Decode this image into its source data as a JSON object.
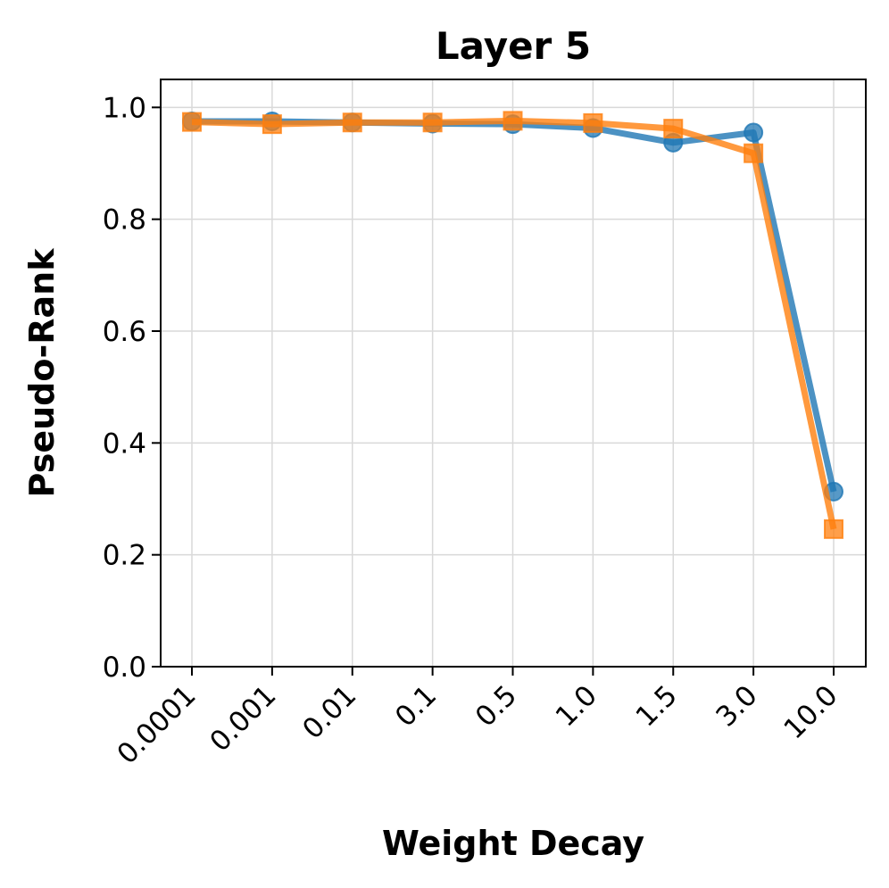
{
  "chart_data": {
    "type": "line",
    "title": "Layer 5",
    "xlabel": "Weight Decay",
    "ylabel": "Pseudo-Rank",
    "categories": [
      "0.0001",
      "0.001",
      "0.01",
      "0.1",
      "0.5",
      "1.0",
      "1.5",
      "3.0",
      "10.0"
    ],
    "ylim": [
      0.0,
      1.05
    ],
    "yticks": [
      "0.0",
      "0.2",
      "0.4",
      "0.6",
      "0.8",
      "1.0"
    ],
    "ytick_values": [
      0.0,
      0.2,
      0.4,
      0.6,
      0.8,
      1.0
    ],
    "grid": true,
    "series": [
      {
        "marker": "circle",
        "color": "#1f77b4",
        "values": [
          0.975,
          0.975,
          0.973,
          0.971,
          0.97,
          0.963,
          0.937,
          0.955,
          0.313
        ]
      },
      {
        "marker": "square",
        "color": "#ff7f0e",
        "values": [
          0.974,
          0.97,
          0.973,
          0.973,
          0.976,
          0.972,
          0.962,
          0.918,
          0.246
        ]
      }
    ]
  }
}
